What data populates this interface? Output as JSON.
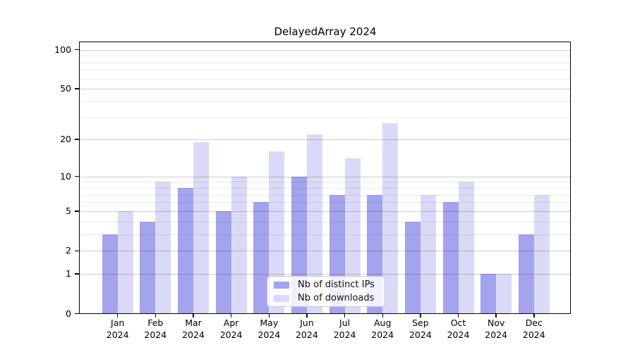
{
  "title": "DelayedArray 2024",
  "chart_data": {
    "type": "bar",
    "title": "DelayedArray 2024",
    "categories": [
      "Jan",
      "Feb",
      "Mar",
      "Apr",
      "May",
      "Jun",
      "Jul",
      "Aug",
      "Sep",
      "Oct",
      "Nov",
      "Dec"
    ],
    "category_year": "2024",
    "series": [
      {
        "name": "Nb of distinct IPs",
        "color": "#a3a3ee",
        "values": [
          3,
          4,
          8,
          5,
          6,
          10,
          7,
          7,
          4,
          6,
          1,
          3
        ]
      },
      {
        "name": "Nb of downloads",
        "color": "#dadaf8",
        "values": [
          5,
          9,
          19,
          10,
          16,
          22,
          14,
          27,
          7,
          9,
          1,
          7
        ]
      }
    ],
    "yscale": "log1p",
    "ylim": [
      0,
      114
    ],
    "yticks": [
      0,
      1,
      2,
      5,
      10,
      20,
      50,
      100
    ],
    "minor_yticks": [
      3,
      4,
      6,
      7,
      8,
      9,
      30,
      40,
      60,
      70,
      80,
      90
    ],
    "grid": true,
    "legend_position": "lower center"
  }
}
